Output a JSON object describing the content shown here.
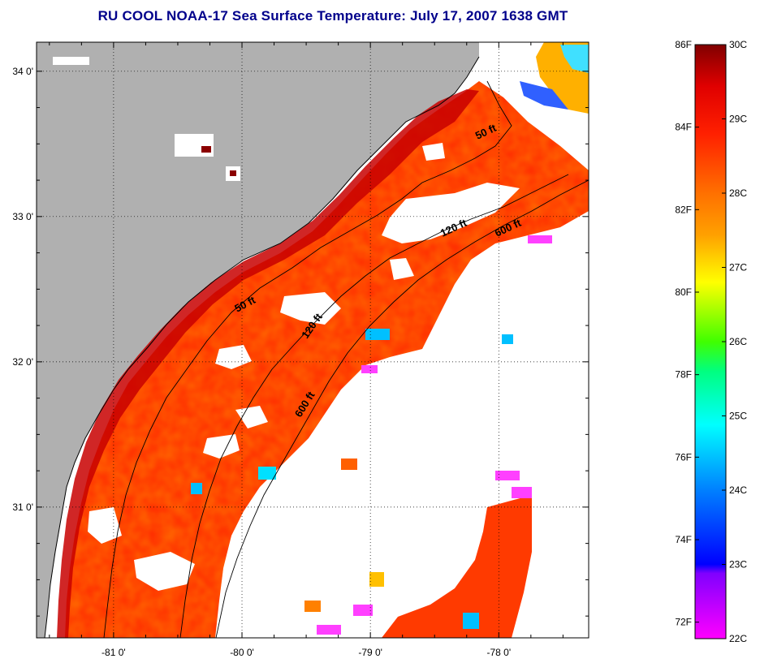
{
  "title": "RU COOL  NOAA-17  Sea Surface Temperature:  July 17, 2007 1638 GMT",
  "map": {
    "lon_range": [
      -81.6,
      -77.3
    ],
    "lat_range": [
      30.1,
      34.2
    ],
    "lon_ticks": [
      {
        "value": -81,
        "label": "-81 0'"
      },
      {
        "value": -80,
        "label": "-80 0'"
      },
      {
        "value": -79,
        "label": "-79 0'"
      },
      {
        "value": -78,
        "label": "-78 0'"
      }
    ],
    "lat_ticks": [
      {
        "value": 34,
        "label": "34 0'"
      },
      {
        "value": 33,
        "label": "33 0'"
      },
      {
        "value": 32,
        "label": "32 0'"
      },
      {
        "value": 31,
        "label": "31 0'"
      }
    ],
    "land_color": "#b0b0b0",
    "cloud_color": "#ffffff",
    "grid": "dotted",
    "contour_labels": [
      {
        "text": "50 ft"
      },
      {
        "text": "50 ft"
      },
      {
        "text": "120 ft"
      },
      {
        "text": "120 ft"
      },
      {
        "text": "600 ft"
      },
      {
        "text": "600 ft"
      }
    ]
  },
  "colorbar": {
    "celsius_range": [
      22,
      30
    ],
    "celsius_labels": [
      "30C",
      "29C",
      "28C",
      "27C",
      "26C",
      "25C",
      "24C",
      "23C",
      "22C"
    ],
    "fahrenheit_labels": [
      "86F",
      "84F",
      "82F",
      "80F",
      "78F",
      "76F",
      "74F",
      "72F"
    ],
    "colors": [
      "#ff00ff",
      "#8000ff",
      "#0000ff",
      "#00ffff",
      "#00ff00",
      "#ffff00",
      "#ff8000",
      "#ff0000",
      "#e00000",
      "#800000"
    ]
  }
}
